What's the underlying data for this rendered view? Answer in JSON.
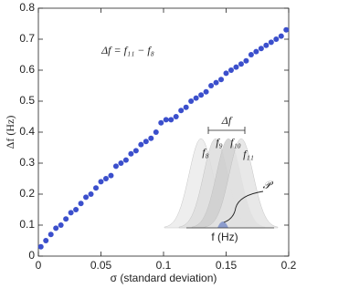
{
  "chart_data": {
    "type": "scatter",
    "x_label": "σ (standard deviation)",
    "y_label": "Δf (Hz)",
    "annotation": "Δf = f₁₁ − f₈",
    "color": "#3b4fcc",
    "xlim": [
      0,
      0.2
    ],
    "ylim": [
      0,
      0.8
    ],
    "xticks": [
      0,
      0.05,
      0.1,
      0.15,
      0.2
    ],
    "yticks": [
      0,
      0.1,
      0.2,
      0.3,
      0.4,
      0.5,
      0.6,
      0.7,
      0.8
    ],
    "x": [
      0.002,
      0.006,
      0.01,
      0.014,
      0.018,
      0.022,
      0.026,
      0.03,
      0.034,
      0.038,
      0.042,
      0.046,
      0.05,
      0.054,
      0.058,
      0.062,
      0.066,
      0.07,
      0.074,
      0.078,
      0.082,
      0.086,
      0.09,
      0.094,
      0.098,
      0.102,
      0.106,
      0.11,
      0.114,
      0.118,
      0.122,
      0.126,
      0.13,
      0.134,
      0.138,
      0.142,
      0.146,
      0.15,
      0.154,
      0.158,
      0.162,
      0.166,
      0.17,
      0.174,
      0.178,
      0.182,
      0.186,
      0.19,
      0.194,
      0.198
    ],
    "values": [
      0.03,
      0.05,
      0.07,
      0.09,
      0.1,
      0.12,
      0.14,
      0.15,
      0.17,
      0.19,
      0.2,
      0.22,
      0.24,
      0.25,
      0.26,
      0.29,
      0.3,
      0.31,
      0.33,
      0.34,
      0.36,
      0.37,
      0.38,
      0.4,
      0.43,
      0.44,
      0.44,
      0.45,
      0.47,
      0.48,
      0.5,
      0.51,
      0.52,
      0.53,
      0.55,
      0.56,
      0.57,
      0.59,
      0.6,
      0.61,
      0.62,
      0.63,
      0.65,
      0.66,
      0.67,
      0.68,
      0.69,
      0.7,
      0.71,
      0.73
    ],
    "inset": {
      "delta": "Δf",
      "f8": "f₈",
      "f9": "f₉",
      "f10": "f₁₀",
      "f11": "f₁₁",
      "p": "𝒫",
      "axis": "f (Hz)"
    }
  }
}
